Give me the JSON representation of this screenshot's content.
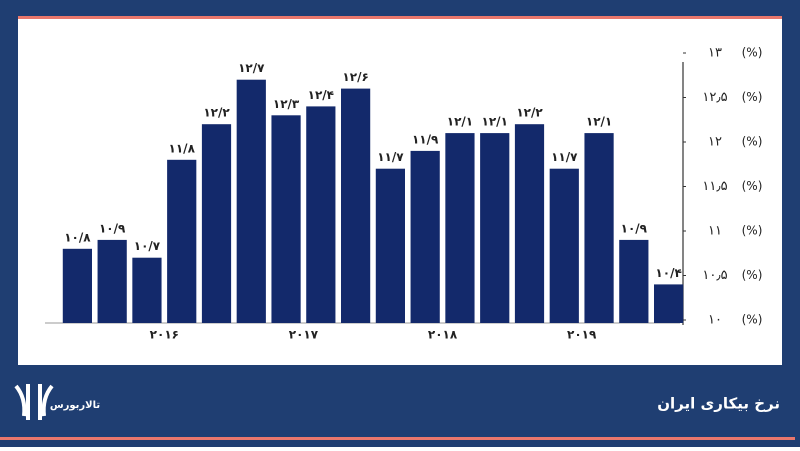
{
  "brand": "تالاربورس",
  "chart_data": {
    "type": "bar",
    "title": "نرخ بیکاری ایران",
    "unit": "(%)",
    "categories": [
      null,
      null,
      null,
      "۲۰۱۶",
      null,
      null,
      null,
      "۲۰۱۷",
      null,
      null,
      null,
      "۲۰۱۸",
      null,
      null,
      null,
      "۲۰۱۹",
      null,
      null
    ],
    "values": [
      10.8,
      10.9,
      10.7,
      11.8,
      12.2,
      12.7,
      12.3,
      12.4,
      12.6,
      11.7,
      11.9,
      12.1,
      12.1,
      12.2,
      11.7,
      12.1,
      10.9,
      10.4
    ],
    "value_labels": [
      "۱۰/۸",
      "۱۰/۹",
      "۱۰/۷",
      "۱۱/۸",
      "۱۲/۲",
      "۱۲/۷",
      "۱۲/۳",
      "۱۲/۴",
      "۱۲/۶",
      "۱۱/۷",
      "۱۱/۹",
      "۱۲/۱",
      "۱۲/۱",
      "۱۲/۲",
      "۱۱/۷",
      "۱۲/۱",
      "۱۰/۹",
      "۱۰/۴"
    ],
    "color": "#13296b",
    "ylim": [
      10,
      13
    ],
    "yticks": [
      {
        "value": 10,
        "label": "۱۰"
      },
      {
        "value": 10.5,
        "label": "۱۰٫۵"
      },
      {
        "value": 11,
        "label": "۱۱"
      },
      {
        "value": 11.5,
        "label": "۱۱٫۵"
      },
      {
        "value": 12,
        "label": "۱۲"
      },
      {
        "value": 12.5,
        "label": "۱۲٫۵"
      },
      {
        "value": 13,
        "label": "۱۳"
      }
    ],
    "grid": false
  }
}
